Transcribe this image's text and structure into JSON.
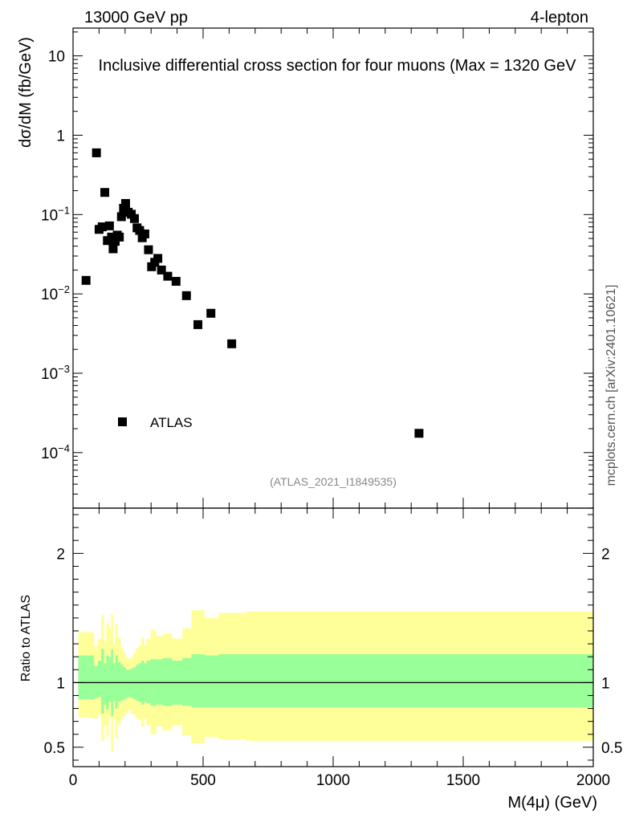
{
  "header": {
    "energy_label": "13000 GeV pp",
    "channel_label": "4-lepton"
  },
  "side_label": "mcplots.cern.ch [arXiv:2401.10621]",
  "analysis_tag": "(ATLAS_2021_I1849535)",
  "colors": {
    "data_marker": "#000000",
    "band_outer": "#ffff99",
    "band_inner": "#99ff99",
    "tag_text": "#888888",
    "side_text": "#555555"
  },
  "chart_data": [
    {
      "type": "scatter",
      "title": "Inclusive differential cross section for four muons (Max = 1320 GeV",
      "ylabel": "dσ/dM (fb/GeV)",
      "xlabel": "",
      "xlim": [
        0,
        2000
      ],
      "ylim_log10": [
        -4.7,
        1.35
      ],
      "yscale": "log",
      "y_ticks": [
        {
          "exp": 1,
          "label": "10"
        },
        {
          "exp": 0,
          "label": "1"
        },
        {
          "exp": -1,
          "base": "10",
          "sup": "−1"
        },
        {
          "exp": -2,
          "base": "10",
          "sup": "−2"
        },
        {
          "exp": -3,
          "base": "10",
          "sup": "−3"
        },
        {
          "exp": -4,
          "base": "10",
          "sup": "−4"
        }
      ],
      "legend": {
        "label": "ATLAS",
        "position": "lower-left"
      },
      "series": [
        {
          "name": "ATLAS",
          "points": [
            {
              "x": 50,
              "y": 0.0148
            },
            {
              "x": 90,
              "y": 0.6
            },
            {
              "x": 100,
              "y": 0.065
            },
            {
              "x": 112,
              "y": 0.07
            },
            {
              "x": 122,
              "y": 0.19
            },
            {
              "x": 132,
              "y": 0.047
            },
            {
              "x": 140,
              "y": 0.072
            },
            {
              "x": 148,
              "y": 0.052
            },
            {
              "x": 154,
              "y": 0.037
            },
            {
              "x": 162,
              "y": 0.046
            },
            {
              "x": 170,
              "y": 0.055
            },
            {
              "x": 178,
              "y": 0.052
            },
            {
              "x": 186,
              "y": 0.094
            },
            {
              "x": 194,
              "y": 0.12
            },
            {
              "x": 202,
              "y": 0.138
            },
            {
              "x": 212,
              "y": 0.107
            },
            {
              "x": 224,
              "y": 0.101
            },
            {
              "x": 236,
              "y": 0.089
            },
            {
              "x": 246,
              "y": 0.068
            },
            {
              "x": 256,
              "y": 0.063
            },
            {
              "x": 266,
              "y": 0.051
            },
            {
              "x": 276,
              "y": 0.057
            },
            {
              "x": 290,
              "y": 0.036
            },
            {
              "x": 302,
              "y": 0.022
            },
            {
              "x": 314,
              "y": 0.025
            },
            {
              "x": 326,
              "y": 0.028
            },
            {
              "x": 340,
              "y": 0.02
            },
            {
              "x": 364,
              "y": 0.0167
            },
            {
              "x": 396,
              "y": 0.0144
            },
            {
              "x": 436,
              "y": 0.0095
            },
            {
              "x": 480,
              "y": 0.0041
            },
            {
              "x": 530,
              "y": 0.0057
            },
            {
              "x": 610,
              "y": 0.00235
            },
            {
              "x": 1330,
              "y": 0.000175
            }
          ]
        }
      ]
    },
    {
      "type": "area",
      "title": "",
      "ylabel": "Ratio to ATLAS",
      "xlabel": "M(4μ) (GeV)",
      "xlim": [
        0,
        2000
      ],
      "ylim": [
        0.35,
        2.35
      ],
      "x_ticks": [
        0,
        500,
        1000,
        1500,
        2000
      ],
      "x_tick_labels": [
        "0",
        "500",
        "1000",
        "1500",
        "2000"
      ],
      "y_ticks": [
        0.5,
        1,
        2
      ],
      "y_tick_labels": [
        "0.5",
        "1",
        "2"
      ],
      "reference_line": 1.0,
      "bands": [
        {
          "name": "outer uncertainty",
          "segments": [
            {
              "x0": 20,
              "x1": 80,
              "lo": 0.73,
              "hi": 1.39
            },
            {
              "x0": 80,
              "x1": 95,
              "lo": 0.72,
              "hi": 1.28
            },
            {
              "x0": 95,
              "x1": 108,
              "lo": 0.75,
              "hi": 1.34
            },
            {
              "x0": 108,
              "x1": 118,
              "lo": 0.55,
              "hi": 1.52
            },
            {
              "x0": 118,
              "x1": 128,
              "lo": 0.67,
              "hi": 1.32
            },
            {
              "x0": 128,
              "x1": 136,
              "lo": 0.58,
              "hi": 1.46
            },
            {
              "x0": 136,
              "x1": 146,
              "lo": 0.73,
              "hi": 1.42
            },
            {
              "x0": 146,
              "x1": 153,
              "lo": 0.46,
              "hi": 1.53
            },
            {
              "x0": 153,
              "x1": 162,
              "lo": 0.72,
              "hi": 1.3
            },
            {
              "x0": 162,
              "x1": 172,
              "lo": 0.57,
              "hi": 1.45
            },
            {
              "x0": 172,
              "x1": 182,
              "lo": 0.68,
              "hi": 1.35
            },
            {
              "x0": 182,
              "x1": 192,
              "lo": 0.72,
              "hi": 1.27
            },
            {
              "x0": 192,
              "x1": 202,
              "lo": 0.74,
              "hi": 1.23
            },
            {
              "x0": 202,
              "x1": 212,
              "lo": 0.76,
              "hi": 1.2
            },
            {
              "x0": 212,
              "x1": 222,
              "lo": 0.79,
              "hi": 1.18
            },
            {
              "x0": 222,
              "x1": 232,
              "lo": 0.76,
              "hi": 1.2
            },
            {
              "x0": 232,
              "x1": 242,
              "lo": 0.75,
              "hi": 1.23
            },
            {
              "x0": 242,
              "x1": 252,
              "lo": 0.72,
              "hi": 1.27
            },
            {
              "x0": 252,
              "x1": 262,
              "lo": 0.71,
              "hi": 1.29
            },
            {
              "x0": 262,
              "x1": 272,
              "lo": 0.66,
              "hi": 1.35
            },
            {
              "x0": 272,
              "x1": 282,
              "lo": 0.72,
              "hi": 1.29
            },
            {
              "x0": 282,
              "x1": 298,
              "lo": 0.67,
              "hi": 1.34
            },
            {
              "x0": 298,
              "x1": 318,
              "lo": 0.6,
              "hi": 1.41
            },
            {
              "x0": 318,
              "x1": 345,
              "lo": 0.66,
              "hi": 1.36
            },
            {
              "x0": 345,
              "x1": 380,
              "lo": 0.63,
              "hi": 1.38
            },
            {
              "x0": 380,
              "x1": 420,
              "lo": 0.67,
              "hi": 1.34
            },
            {
              "x0": 420,
              "x1": 455,
              "lo": 0.59,
              "hi": 1.42
            },
            {
              "x0": 455,
              "x1": 505,
              "lo": 0.53,
              "hi": 1.56
            },
            {
              "x0": 505,
              "x1": 560,
              "lo": 0.58,
              "hi": 1.5
            },
            {
              "x0": 560,
              "x1": 665,
              "lo": 0.56,
              "hi": 1.54
            },
            {
              "x0": 665,
              "x1": 2000,
              "lo": 0.55,
              "hi": 1.55
            }
          ]
        },
        {
          "name": "inner uncertainty",
          "segments": [
            {
              "x0": 20,
              "x1": 80,
              "lo": 0.87,
              "hi": 1.21
            },
            {
              "x0": 80,
              "x1": 95,
              "lo": 0.88,
              "hi": 1.13
            },
            {
              "x0": 95,
              "x1": 108,
              "lo": 0.89,
              "hi": 1.17
            },
            {
              "x0": 108,
              "x1": 118,
              "lo": 0.76,
              "hi": 1.26
            },
            {
              "x0": 118,
              "x1": 128,
              "lo": 0.83,
              "hi": 1.15
            },
            {
              "x0": 128,
              "x1": 136,
              "lo": 0.79,
              "hi": 1.21
            },
            {
              "x0": 136,
              "x1": 146,
              "lo": 0.85,
              "hi": 1.2
            },
            {
              "x0": 146,
              "x1": 153,
              "lo": 0.74,
              "hi": 1.26
            },
            {
              "x0": 153,
              "x1": 162,
              "lo": 0.86,
              "hi": 1.15
            },
            {
              "x0": 162,
              "x1": 172,
              "lo": 0.8,
              "hi": 1.21
            },
            {
              "x0": 172,
              "x1": 182,
              "lo": 0.85,
              "hi": 1.16
            },
            {
              "x0": 182,
              "x1": 192,
              "lo": 0.86,
              "hi": 1.14
            },
            {
              "x0": 192,
              "x1": 202,
              "lo": 0.87,
              "hi": 1.12
            },
            {
              "x0": 202,
              "x1": 212,
              "lo": 0.88,
              "hi": 1.1
            },
            {
              "x0": 212,
              "x1": 222,
              "lo": 0.89,
              "hi": 1.1
            },
            {
              "x0": 222,
              "x1": 232,
              "lo": 0.88,
              "hi": 1.11
            },
            {
              "x0": 232,
              "x1": 242,
              "lo": 0.87,
              "hi": 1.12
            },
            {
              "x0": 242,
              "x1": 252,
              "lo": 0.86,
              "hi": 1.14
            },
            {
              "x0": 252,
              "x1": 262,
              "lo": 0.85,
              "hi": 1.15
            },
            {
              "x0": 262,
              "x1": 272,
              "lo": 0.83,
              "hi": 1.17
            },
            {
              "x0": 272,
              "x1": 282,
              "lo": 0.85,
              "hi": 1.15
            },
            {
              "x0": 282,
              "x1": 298,
              "lo": 0.84,
              "hi": 1.17
            },
            {
              "x0": 298,
              "x1": 318,
              "lo": 0.82,
              "hi": 1.18
            },
            {
              "x0": 318,
              "x1": 345,
              "lo": 0.83,
              "hi": 1.18
            },
            {
              "x0": 345,
              "x1": 380,
              "lo": 0.82,
              "hi": 1.19
            },
            {
              "x0": 380,
              "x1": 420,
              "lo": 0.83,
              "hi": 1.17
            },
            {
              "x0": 420,
              "x1": 455,
              "lo": 0.82,
              "hi": 1.19
            },
            {
              "x0": 455,
              "x1": 505,
              "lo": 0.81,
              "hi": 1.22
            },
            {
              "x0": 505,
              "x1": 560,
              "lo": 0.81,
              "hi": 1.21
            },
            {
              "x0": 560,
              "x1": 665,
              "lo": 0.81,
              "hi": 1.22
            },
            {
              "x0": 665,
              "x1": 2000,
              "lo": 0.81,
              "hi": 1.22
            }
          ]
        }
      ]
    }
  ]
}
